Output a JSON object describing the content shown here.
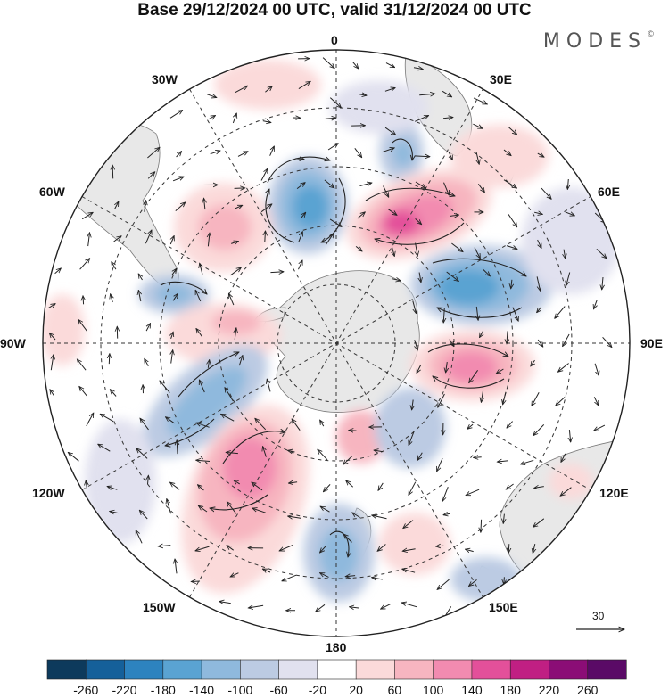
{
  "title": "Base 29/12/2024 00 UTC, valid 31/12/2024 00 UTC",
  "brand": "MODES",
  "brand_mark": "©",
  "longitude_labels": {
    "n0": "0",
    "n30e": "30E",
    "n60e": "60E",
    "n90e": "90E",
    "n120e": "120E",
    "n150e": "150E",
    "n180": "180",
    "n150w": "150W",
    "n120w": "120W",
    "n90w": "90W",
    "n60w": "60W",
    "n30w": "30W"
  },
  "reference_vector": "30",
  "colorbar": {
    "ticks": [
      "-260",
      "-220",
      "-180",
      "-140",
      "-100",
      "-60",
      "-20",
      "20",
      "60",
      "100",
      "140",
      "180",
      "220",
      "260"
    ],
    "colors": [
      "#0d3a5c",
      "#15609a",
      "#2d83bf",
      "#5aa3d2",
      "#8fb9dd",
      "#bccbe3",
      "#e1e1ef",
      "#ffffff",
      "#fbdada",
      "#f7b5c0",
      "#f28bb0",
      "#e3509a",
      "#c01f83",
      "#8b0d76",
      "#5a0a66"
    ]
  },
  "colors": {
    "land": "#e8e8e8",
    "coast": "#777777",
    "grid": "#333333",
    "arrow": "#222222"
  },
  "icons": {
    "antarctica": "landmass-icon",
    "reference_arrow": "arrow-right-icon"
  }
}
